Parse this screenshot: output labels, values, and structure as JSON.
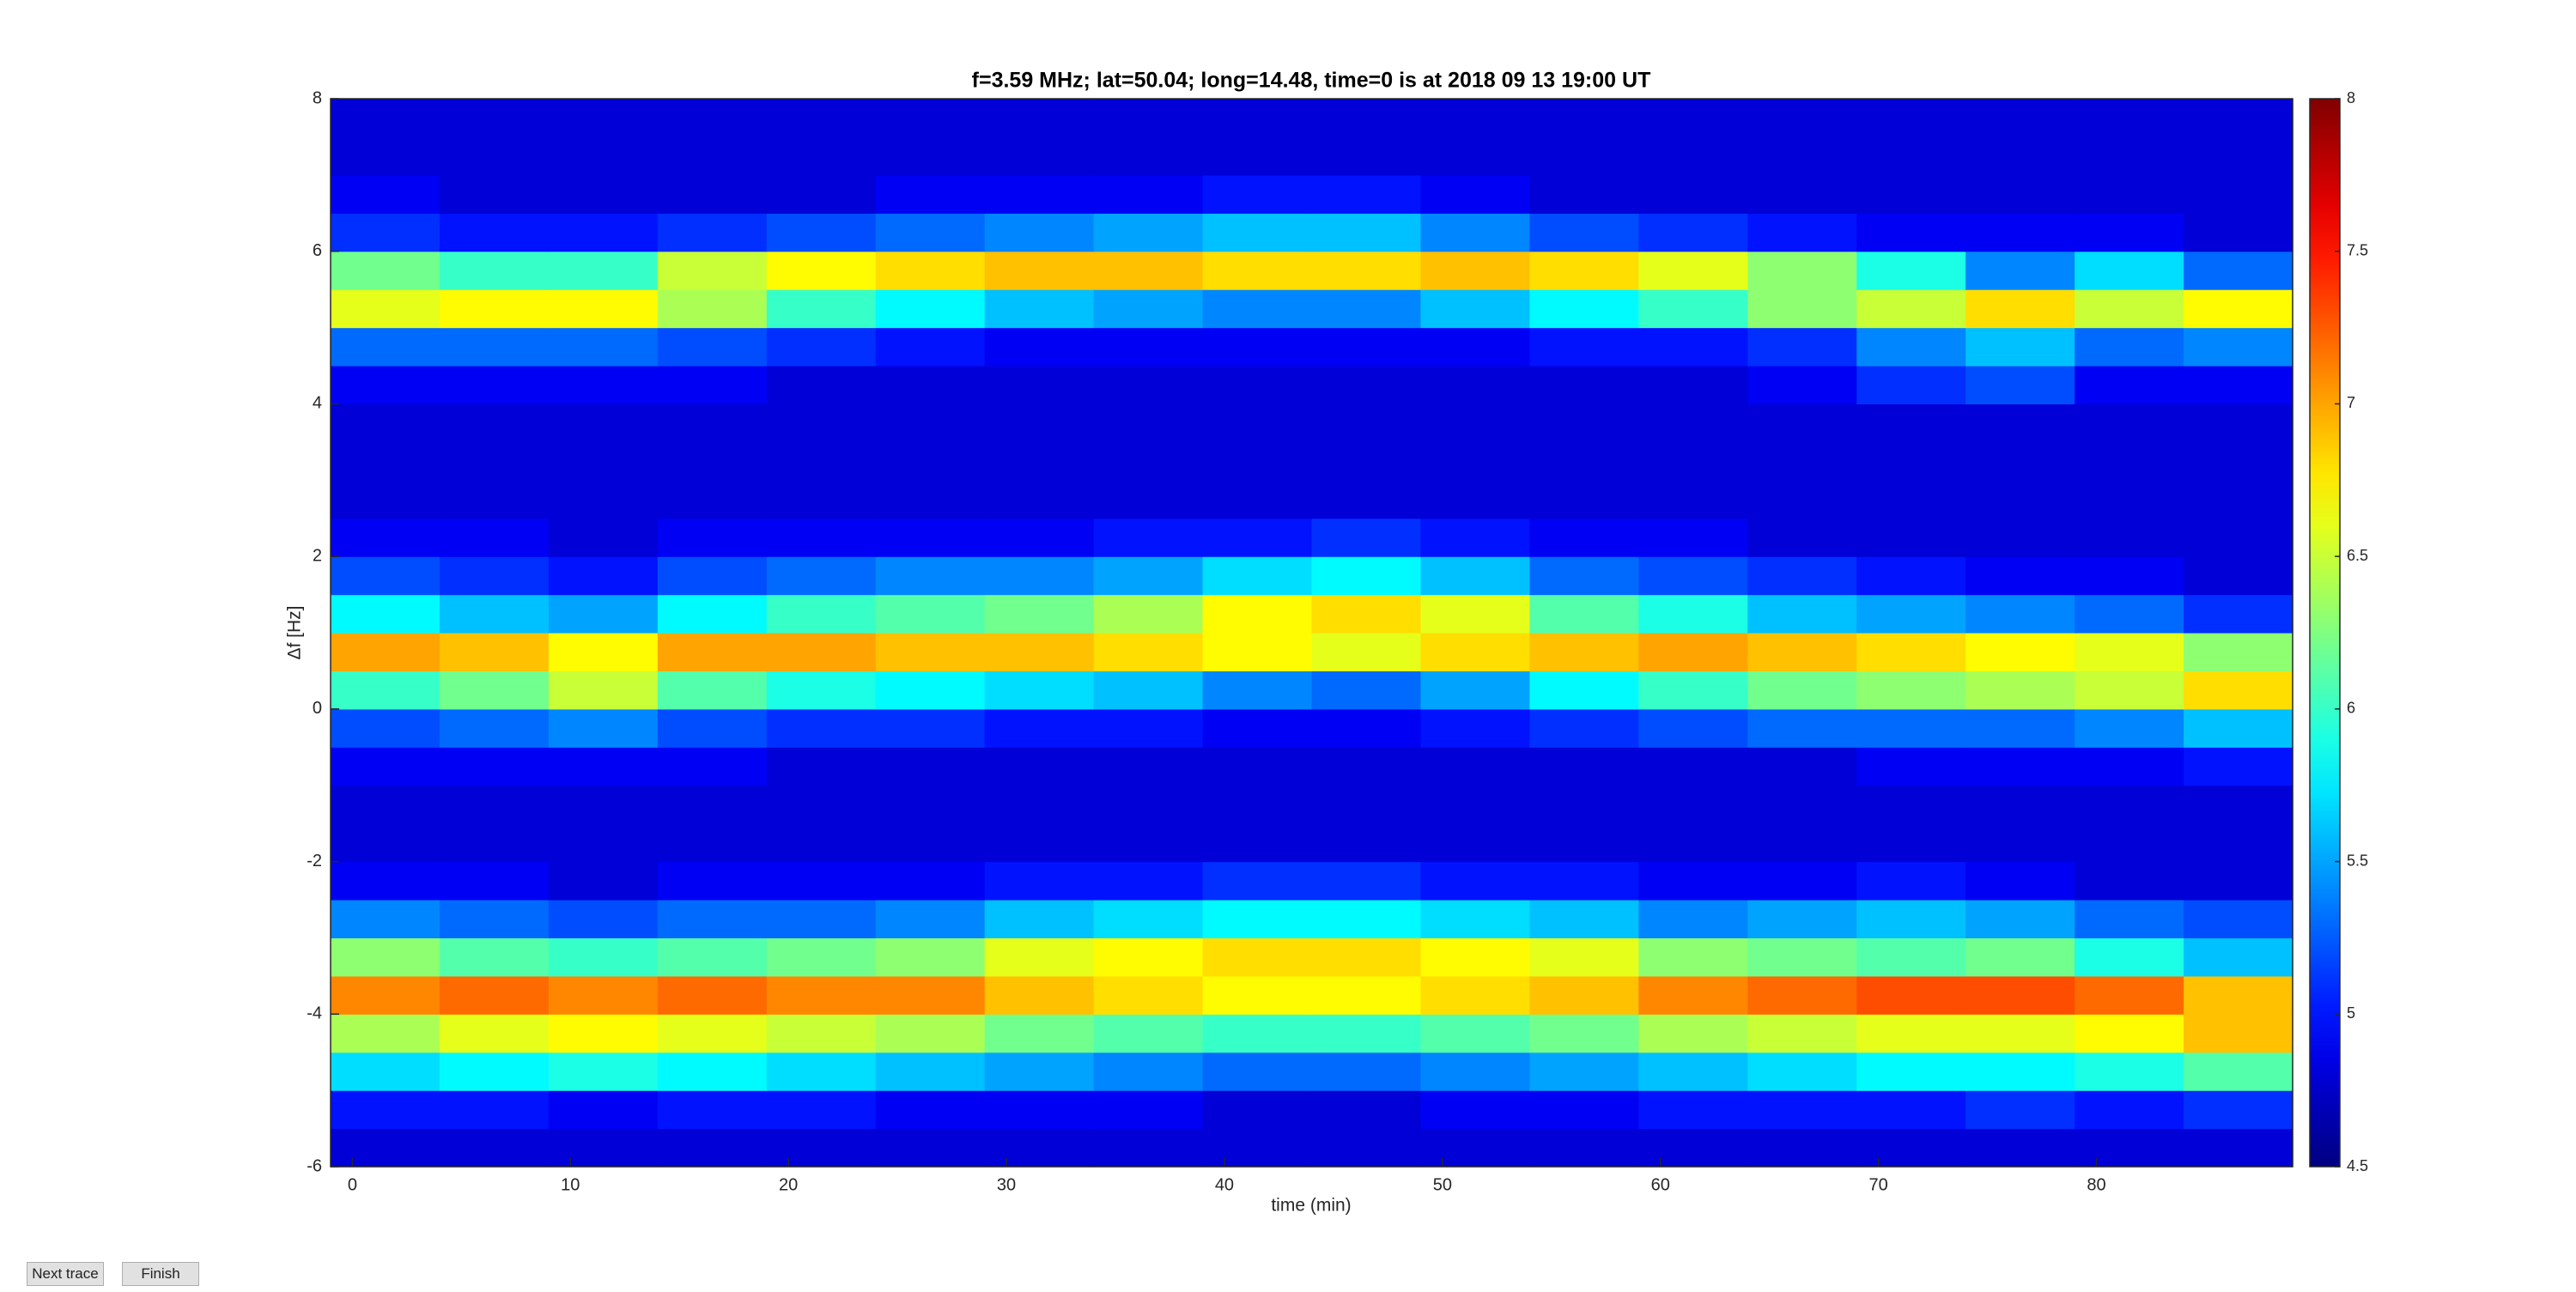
{
  "chart_data": {
    "type": "heatmap",
    "title": "f=3.59 MHz;  lat=50.04; long=14.48, time=0 is at 2018 09 13 19:00 UT",
    "xlabel": "time (min)",
    "ylabel": "Δf [Hz]",
    "xlim": [
      -1,
      89
    ],
    "ylim": [
      -6,
      8
    ],
    "xticks": [
      0,
      10,
      20,
      30,
      40,
      50,
      60,
      70,
      80
    ],
    "yticks": [
      -6,
      -4,
      -2,
      0,
      2,
      4,
      6,
      8
    ],
    "colormap": "jet",
    "clim": [
      4.5,
      8
    ],
    "cticks": [
      4.5,
      5,
      5.5,
      6,
      6.5,
      7,
      7.5,
      8
    ],
    "xbins": [
      -1,
      4,
      9,
      14,
      19,
      24,
      29,
      34,
      39,
      44,
      49,
      54,
      59,
      64,
      69,
      74,
      79,
      84,
      89
    ],
    "ybins": [
      -6,
      -5.5,
      -5,
      -4.5,
      -4,
      -3.5,
      -3,
      -2.5,
      -2,
      -1.5,
      -1,
      -0.5,
      0,
      0.5,
      1,
      1.5,
      2,
      2.5,
      3,
      3.5,
      4,
      4.5,
      5,
      5.5,
      6,
      6.5,
      7,
      7.5,
      8
    ],
    "z": [
      [
        4.8,
        4.8,
        4.8,
        4.8,
        4.8,
        4.8,
        4.8,
        4.8,
        4.8,
        4.8,
        4.8,
        4.8,
        4.8,
        4.8,
        4.8,
        4.8,
        4.8,
        4.8
      ],
      [
        5.0,
        5.0,
        4.9,
        5.0,
        5.0,
        4.9,
        4.9,
        4.9,
        4.8,
        4.8,
        4.9,
        4.9,
        5.0,
        5.0,
        5.0,
        5.1,
        5.0,
        5.1
      ],
      [
        5.7,
        5.8,
        5.9,
        5.8,
        5.7,
        5.6,
        5.5,
        5.4,
        5.3,
        5.3,
        5.4,
        5.5,
        5.6,
        5.7,
        5.8,
        5.8,
        5.9,
        6.1
      ],
      [
        6.4,
        6.6,
        6.7,
        6.6,
        6.5,
        6.4,
        6.2,
        6.1,
        6.0,
        6.0,
        6.1,
        6.2,
        6.4,
        6.5,
        6.6,
        6.6,
        6.7,
        6.9
      ],
      [
        7.1,
        7.2,
        7.1,
        7.2,
        7.1,
        7.1,
        6.9,
        6.8,
        6.7,
        6.7,
        6.8,
        6.9,
        7.1,
        7.2,
        7.3,
        7.3,
        7.2,
        6.9
      ],
      [
        6.3,
        6.1,
        6.0,
        6.1,
        6.2,
        6.3,
        6.6,
        6.7,
        6.8,
        6.8,
        6.7,
        6.6,
        6.3,
        6.2,
        6.1,
        6.2,
        5.9,
        5.6
      ],
      [
        5.4,
        5.3,
        5.2,
        5.3,
        5.3,
        5.4,
        5.6,
        5.7,
        5.8,
        5.8,
        5.7,
        5.6,
        5.4,
        5.5,
        5.6,
        5.5,
        5.3,
        5.2
      ],
      [
        4.9,
        4.9,
        4.8,
        4.9,
        4.9,
        4.9,
        5.0,
        5.0,
        5.1,
        5.1,
        5.0,
        5.0,
        4.9,
        4.9,
        5.0,
        4.9,
        4.8,
        4.8
      ],
      [
        4.8,
        4.8,
        4.8,
        4.8,
        4.8,
        4.8,
        4.8,
        4.8,
        4.8,
        4.8,
        4.8,
        4.8,
        4.8,
        4.8,
        4.8,
        4.8,
        4.8,
        4.8
      ],
      [
        4.8,
        4.8,
        4.8,
        4.8,
        4.8,
        4.8,
        4.8,
        4.8,
        4.8,
        4.8,
        4.8,
        4.8,
        4.8,
        4.8,
        4.8,
        4.8,
        4.8,
        4.8
      ],
      [
        4.9,
        4.9,
        4.9,
        4.9,
        4.8,
        4.8,
        4.8,
        4.8,
        4.8,
        4.8,
        4.8,
        4.8,
        4.8,
        4.8,
        4.9,
        4.9,
        4.9,
        5.0
      ],
      [
        5.2,
        5.3,
        5.4,
        5.2,
        5.1,
        5.1,
        5.0,
        5.0,
        4.9,
        4.9,
        5.0,
        5.1,
        5.2,
        5.3,
        5.3,
        5.3,
        5.4,
        5.6
      ],
      [
        6.0,
        6.2,
        6.5,
        6.1,
        5.9,
        5.8,
        5.7,
        5.6,
        5.4,
        5.3,
        5.5,
        5.8,
        6.0,
        6.2,
        6.3,
        6.4,
        6.5,
        6.8
      ],
      [
        7.0,
        6.9,
        6.7,
        7.0,
        7.0,
        6.9,
        6.9,
        6.8,
        6.7,
        6.6,
        6.8,
        6.9,
        7.0,
        6.9,
        6.8,
        6.7,
        6.6,
        6.3
      ],
      [
        5.8,
        5.6,
        5.5,
        5.8,
        6.0,
        6.1,
        6.2,
        6.4,
        6.7,
        6.8,
        6.6,
        6.1,
        5.9,
        5.6,
        5.5,
        5.4,
        5.3,
        5.1
      ],
      [
        5.2,
        5.1,
        5.0,
        5.2,
        5.3,
        5.4,
        5.4,
        5.5,
        5.7,
        5.8,
        5.6,
        5.3,
        5.2,
        5.1,
        5.0,
        4.9,
        4.9,
        4.8
      ],
      [
        4.9,
        4.9,
        4.8,
        4.9,
        4.9,
        4.9,
        4.9,
        5.0,
        5.0,
        5.1,
        5.0,
        4.9,
        4.9,
        4.8,
        4.8,
        4.8,
        4.8,
        4.8
      ],
      [
        4.8,
        4.8,
        4.8,
        4.8,
        4.8,
        4.8,
        4.8,
        4.8,
        4.8,
        4.8,
        4.8,
        4.8,
        4.8,
        4.8,
        4.8,
        4.8,
        4.8,
        4.8
      ],
      [
        4.8,
        4.8,
        4.8,
        4.8,
        4.8,
        4.8,
        4.8,
        4.8,
        4.8,
        4.8,
        4.8,
        4.8,
        4.8,
        4.8,
        4.8,
        4.8,
        4.8,
        4.8
      ],
      [
        4.8,
        4.8,
        4.8,
        4.8,
        4.8,
        4.8,
        4.8,
        4.8,
        4.8,
        4.8,
        4.8,
        4.8,
        4.8,
        4.8,
        4.8,
        4.8,
        4.8,
        4.8
      ],
      [
        4.9,
        4.9,
        4.9,
        4.9,
        4.8,
        4.8,
        4.8,
        4.8,
        4.8,
        4.8,
        4.8,
        4.8,
        4.8,
        4.9,
        5.1,
        5.2,
        4.9,
        4.9
      ],
      [
        5.3,
        5.3,
        5.3,
        5.2,
        5.1,
        5.0,
        4.9,
        4.9,
        4.9,
        4.9,
        4.9,
        5.0,
        5.0,
        5.1,
        5.4,
        5.6,
        5.3,
        5.4
      ],
      [
        6.6,
        6.7,
        6.7,
        6.4,
        6.0,
        5.8,
        5.6,
        5.5,
        5.4,
        5.4,
        5.6,
        5.8,
        6.0,
        6.3,
        6.5,
        6.8,
        6.5,
        6.7
      ],
      [
        6.2,
        6.0,
        6.0,
        6.5,
        6.7,
        6.8,
        6.9,
        6.9,
        6.8,
        6.8,
        6.9,
        6.8,
        6.6,
        6.3,
        5.9,
        5.4,
        5.7,
        5.3
      ],
      [
        5.1,
        5.0,
        5.0,
        5.1,
        5.2,
        5.3,
        5.4,
        5.5,
        5.6,
        5.6,
        5.4,
        5.2,
        5.1,
        5.0,
        4.9,
        4.9,
        4.9,
        4.8
      ],
      [
        4.9,
        4.8,
        4.8,
        4.8,
        4.8,
        4.9,
        4.9,
        4.9,
        5.0,
        5.0,
        4.9,
        4.8,
        4.8,
        4.8,
        4.8,
        4.8,
        4.8,
        4.8
      ],
      [
        4.8,
        4.8,
        4.8,
        4.8,
        4.8,
        4.8,
        4.8,
        4.8,
        4.8,
        4.8,
        4.8,
        4.8,
        4.8,
        4.8,
        4.8,
        4.8,
        4.8,
        4.8
      ],
      [
        4.8,
        4.8,
        4.8,
        4.8,
        4.8,
        4.8,
        4.8,
        4.8,
        4.8,
        4.8,
        4.8,
        4.8,
        4.8,
        4.8,
        4.8,
        4.8,
        4.8,
        4.8
      ]
    ]
  },
  "buttons": [
    "Next trace",
    "Finish"
  ]
}
